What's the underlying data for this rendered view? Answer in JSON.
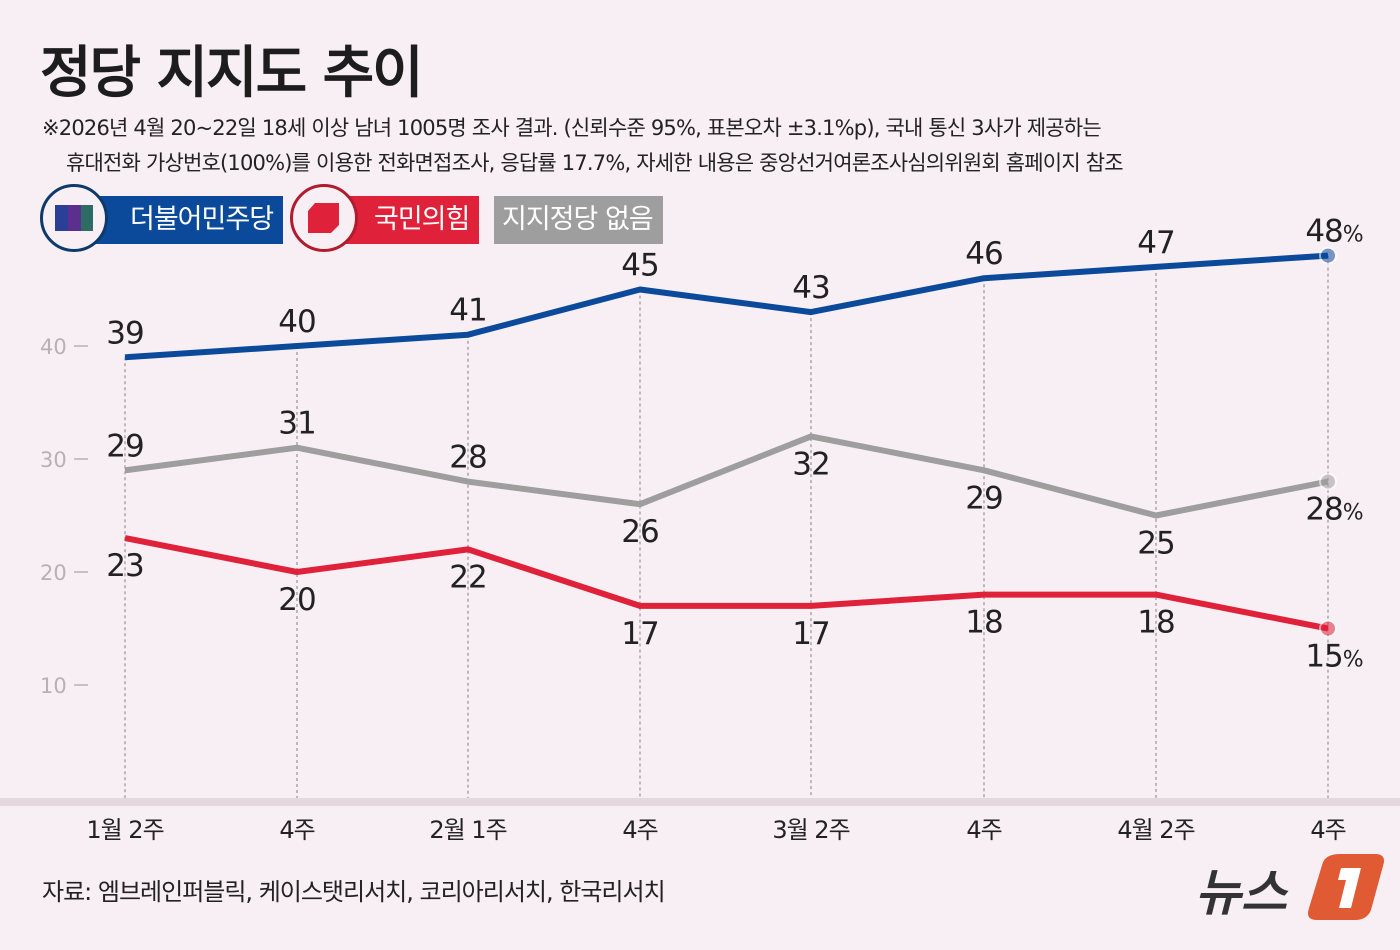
{
  "title": "정당 지지도 추이",
  "notes": [
    "※2026년 4월 20~22일 18세 이상 남녀 1005명 조사 결과. (신뢰수준 95%, 표본오차 ±3.1%p), 국내 통신 3사가 제공하는",
    "휴대전화 가상번호(100%)를 이용한 전화면접조사, 응답률 17.7%, 자세한 내용은 중앙선거여론조사심의위원회 홈페이지 참조"
  ],
  "source": "자료: 엠브레인퍼블릭, 케이스탯리서치, 코리아리서치, 한국리서치",
  "logo_text": "뉴스1",
  "chart_data": {
    "type": "line",
    "title": "정당 지지도 추이",
    "categories": [
      "1월 2주",
      "4주",
      "2월 1주",
      "4주",
      "3월 2주",
      "4주",
      "4월 2주",
      "4주"
    ],
    "yticks": [
      10,
      20,
      30,
      40
    ],
    "ylim": [
      0,
      50
    ],
    "grid": "vertical dotted",
    "legend": "top-left",
    "last_suffix": "%",
    "series": [
      {
        "name": "더불어민주당",
        "color": "#0b4a9a",
        "values": [
          39,
          40,
          41,
          45,
          43,
          46,
          47,
          48
        ]
      },
      {
        "name": "국민의힘",
        "color": "#e0213a",
        "values": [
          23,
          20,
          22,
          17,
          17,
          18,
          18,
          15
        ]
      },
      {
        "name": "지지정당 없음",
        "color": "#9e9e9e",
        "values": [
          29,
          31,
          28,
          26,
          32,
          29,
          25,
          28
        ]
      }
    ]
  }
}
